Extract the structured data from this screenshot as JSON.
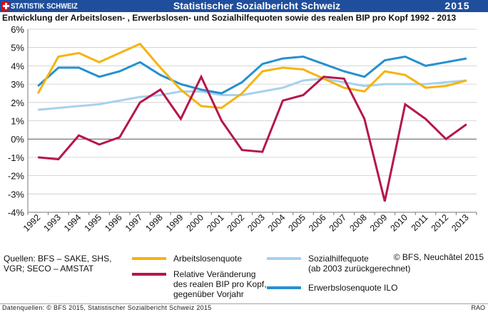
{
  "header": {
    "brand_label": "STATISTIK SCHWEIZ",
    "report_title": "Statistischer Sozialbericht Schweiz",
    "year": "2015",
    "bar_color": "#1f4e9c",
    "flag_icon": "swiss-flag-icon"
  },
  "chart_data": {
    "type": "line",
    "title": "Entwicklung der Arbeitslosen- , Erwerbslosen- und Sozialhilfequoten sowie des realen BIP pro Kopf  1992 - 2013",
    "xlabel": "",
    "ylabel": "",
    "x": [
      "1992",
      "1993",
      "1994",
      "1995",
      "1996",
      "1997",
      "1998",
      "1999",
      "2000",
      "2001",
      "2002",
      "2003",
      "2004",
      "2005",
      "2006",
      "2007",
      "2008",
      "2009",
      "2010",
      "2011",
      "2012",
      "2013"
    ],
    "y_ticks": [
      "6%",
      "5%",
      "4%",
      "3%",
      "2%",
      "1%",
      "0%",
      "-1%",
      "-2%",
      "-3%",
      "-4%"
    ],
    "ylim": [
      -4,
      6
    ],
    "grid": "horizontal",
    "series": [
      {
        "name": "Sozialhilfequote (ab 2003 zurückgerechnet)",
        "color": "#a6d1ee",
        "values": [
          1.6,
          1.7,
          1.8,
          1.9,
          2.1,
          2.3,
          2.4,
          2.6,
          2.6,
          2.4,
          2.4,
          2.6,
          2.8,
          3.2,
          3.3,
          3.1,
          2.9,
          3.0,
          3.0,
          3.0,
          3.1,
          3.2
        ]
      },
      {
        "name": "Erwerbslosenquote ILO",
        "color": "#2590cf",
        "values": [
          2.9,
          3.9,
          3.9,
          3.4,
          3.7,
          4.2,
          3.5,
          3.0,
          2.7,
          2.5,
          3.1,
          4.1,
          4.4,
          4.5,
          4.1,
          3.7,
          3.4,
          4.3,
          4.5,
          4.0,
          4.2,
          4.4
        ]
      },
      {
        "name": "Arbeitslosenquote",
        "color": "#f5b30f",
        "values": [
          2.5,
          4.5,
          4.7,
          4.2,
          4.7,
          5.2,
          3.9,
          2.7,
          1.8,
          1.7,
          2.5,
          3.7,
          3.9,
          3.8,
          3.3,
          2.8,
          2.6,
          3.7,
          3.5,
          2.8,
          2.9,
          3.2
        ]
      },
      {
        "name": "Relative Veränderung des realen BIP pro Kopf, gegenüber Vorjahr",
        "color": "#b5174a",
        "values": [
          -1.0,
          -1.1,
          0.2,
          -0.3,
          0.1,
          2.0,
          2.7,
          1.1,
          3.4,
          1.0,
          -0.6,
          -0.7,
          2.1,
          2.4,
          3.4,
          3.3,
          1.1,
          -3.4,
          1.9,
          1.1,
          0.0,
          0.8
        ]
      }
    ]
  },
  "legend": {
    "sources": "Quellen: BFS – SAKE, SHS, VGR; SECO – AMSTAT",
    "items": [
      {
        "label": "Arbeitslosenquote",
        "color": "#f5b30f"
      },
      {
        "label": "Relative Veränderung\ndes realen BIP pro Kopf,\ngegenüber Vorjahr",
        "color": "#b5174a"
      },
      {
        "label": "Sozialhilfequote\n(ab 2003 zurückgerechnet)",
        "color": "#a6d1ee"
      },
      {
        "label": "Erwerbslosenquote ILO",
        "color": "#2590cf"
      }
    ],
    "copyright": "© BFS, Neuchâtel 2015"
  },
  "footer": {
    "left": "Datenquellen: © BFS 2015, Statistischer Sozialbericht Schweiz 2015",
    "right": "RAO"
  }
}
